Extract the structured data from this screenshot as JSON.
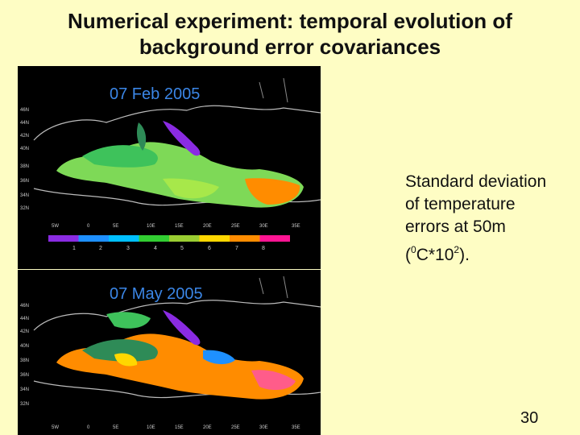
{
  "slide": {
    "title_line1": "Numerical experiment: temporal evolution of",
    "title_line2": "background error covariances",
    "page_number": "30"
  },
  "panels": [
    {
      "date": "07 Feb 2005",
      "lat_ticks": [
        "46N",
        "44N",
        "42N",
        "40N",
        "38N",
        "36N",
        "34N",
        "32N"
      ],
      "lon_ticks": [
        "5W",
        "0",
        "5E",
        "10E",
        "15E",
        "20E",
        "25E",
        "30E",
        "35E"
      ]
    },
    {
      "date": "07 May 2005",
      "lat_ticks": [
        "46N",
        "44N",
        "42N",
        "40N",
        "38N",
        "36N",
        "34N",
        "32N"
      ],
      "lon_ticks": [
        "5W",
        "0",
        "5E",
        "10E",
        "15E",
        "20E",
        "25E",
        "30E",
        "35E"
      ]
    }
  ],
  "colorbar": {
    "labels": [
      "1",
      "2",
      "3",
      "4",
      "5",
      "6",
      "7",
      "8"
    ],
    "colors": [
      "#8a2be2",
      "#1e90ff",
      "#00bfff",
      "#32cd32",
      "#9acd32",
      "#ffd700",
      "#ff8c00",
      "#ff1493"
    ]
  },
  "caption": {
    "line1": "Standard deviation",
    "line2": "of temperature",
    "line3": "errors at 50m",
    "line4_open": "(",
    "line4_sup1": "0",
    "line4_mid": "C*10",
    "line4_sup2": "2",
    "line4_close": ")."
  }
}
